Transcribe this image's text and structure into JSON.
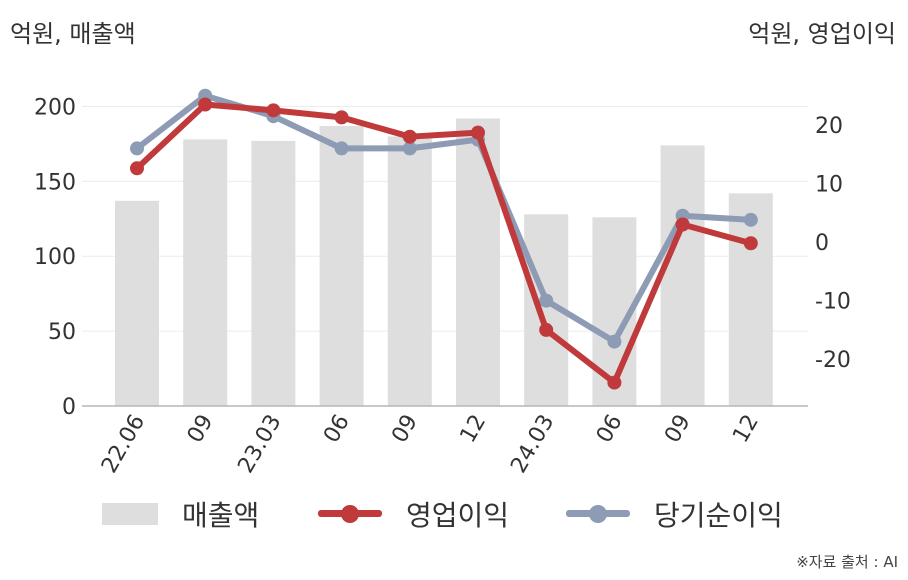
{
  "units": {
    "left": "억원, 매출액",
    "right": "억원, 영업이익"
  },
  "legend": {
    "revenue": "매출액",
    "operating_profit": "영업이익",
    "net_profit": "당기순이익"
  },
  "source": "※자료 출처 : AI",
  "colors": {
    "bars": "#dedede",
    "operating_profit": "#c0393b",
    "net_profit": "#8e9bb5"
  },
  "chart_data": {
    "type": "bar+line",
    "categories": [
      "22.06",
      "09",
      "23.03",
      "06",
      "09",
      "12",
      "24.03",
      "06",
      "09",
      "12"
    ],
    "left_axis": {
      "ylim": [
        0,
        215
      ],
      "ticks": [
        0,
        50,
        100,
        150,
        200
      ]
    },
    "right_axis": {
      "ylim": [
        -28,
        27
      ],
      "ticks": [
        -20,
        -10,
        0,
        10,
        20
      ]
    },
    "series": [
      {
        "name": "매출액",
        "type": "bar",
        "axis": "left",
        "values": [
          137,
          178,
          177,
          187,
          180,
          192,
          128,
          126,
          174,
          142
        ]
      },
      {
        "name": "영업이익",
        "type": "line",
        "axis": "right",
        "values": [
          12.6,
          23.5,
          22.5,
          21.3,
          18,
          18.7,
          -15,
          -24,
          3,
          -0.2
        ]
      },
      {
        "name": "당기순이익",
        "type": "line",
        "axis": "right",
        "values": [
          16,
          25,
          21.5,
          16,
          16,
          17.5,
          -10,
          -17,
          4.5,
          3.8
        ]
      }
    ],
    "grid": true,
    "legend_position": "bottom"
  }
}
